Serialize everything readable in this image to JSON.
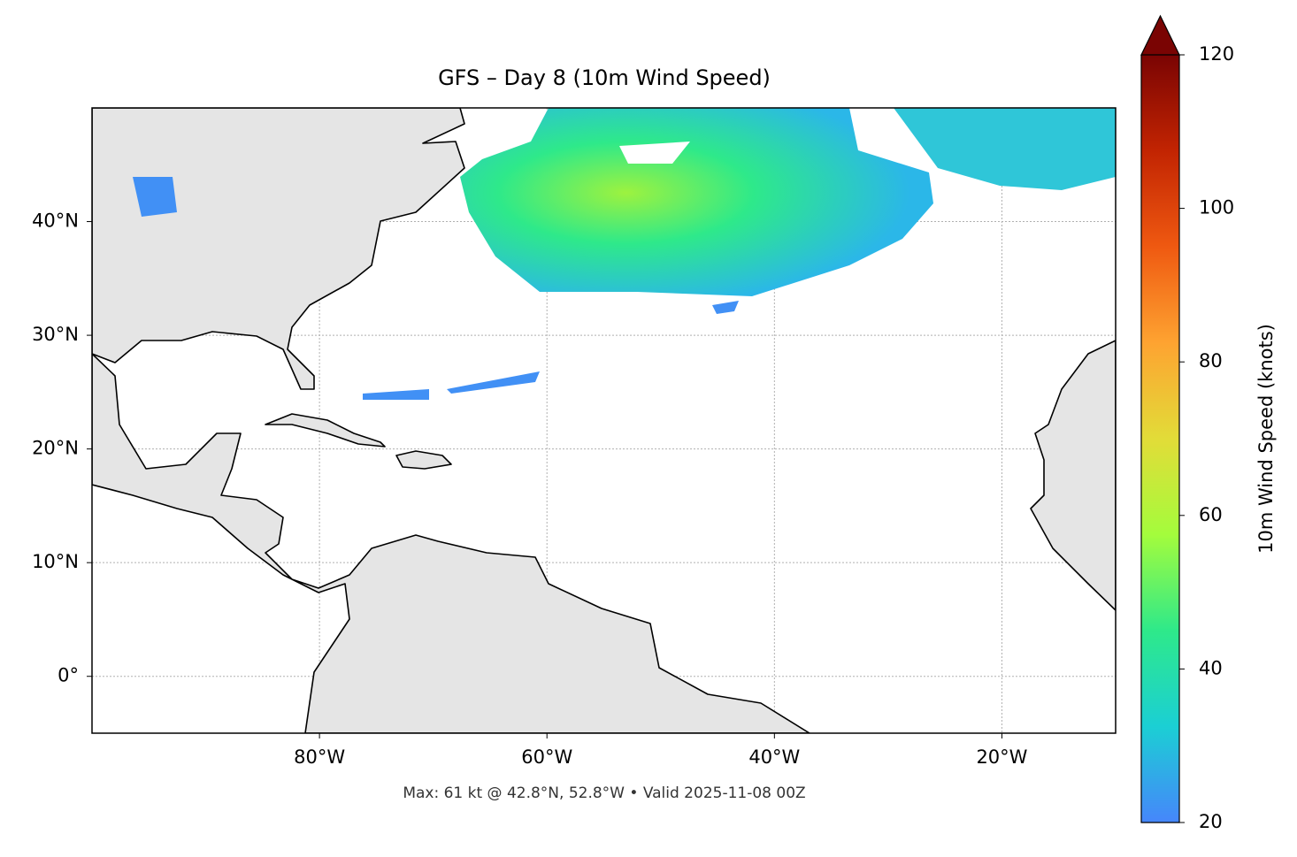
{
  "chart_data": {
    "type": "map",
    "title": "GFS – Day 8 (10m Wind Speed)",
    "note": "Max: 61 kt @ 42.8°N, 52.8°W • Valid 2025-11-08 00Z",
    "xlim": [
      -100,
      -10
    ],
    "ylim": [
      -5,
      50
    ],
    "xticks": [
      {
        "value": -80,
        "label": "80°W"
      },
      {
        "value": -60,
        "label": "60°W"
      },
      {
        "value": -40,
        "label": "40°W"
      },
      {
        "value": -20,
        "label": "20°W"
      }
    ],
    "yticks": [
      {
        "value": 0,
        "label": "0°"
      },
      {
        "value": 10,
        "label": "10°N"
      },
      {
        "value": 20,
        "label": "20°N"
      },
      {
        "value": 30,
        "label": "30°N"
      },
      {
        "value": 40,
        "label": "40°N"
      }
    ],
    "grid": true,
    "colorbar": {
      "label": "10m Wind Speed (knots)",
      "lim": [
        20,
        120
      ],
      "ticks": [
        20,
        40,
        60,
        80,
        100,
        120
      ],
      "colors": [
        "#4686fb",
        "#1bcfd4",
        "#2ee98a",
        "#a4fc3c",
        "#e2dc38",
        "#fea331",
        "#ef5911",
        "#c22402",
        "#7a0403"
      ],
      "extend": "max"
    }
  }
}
